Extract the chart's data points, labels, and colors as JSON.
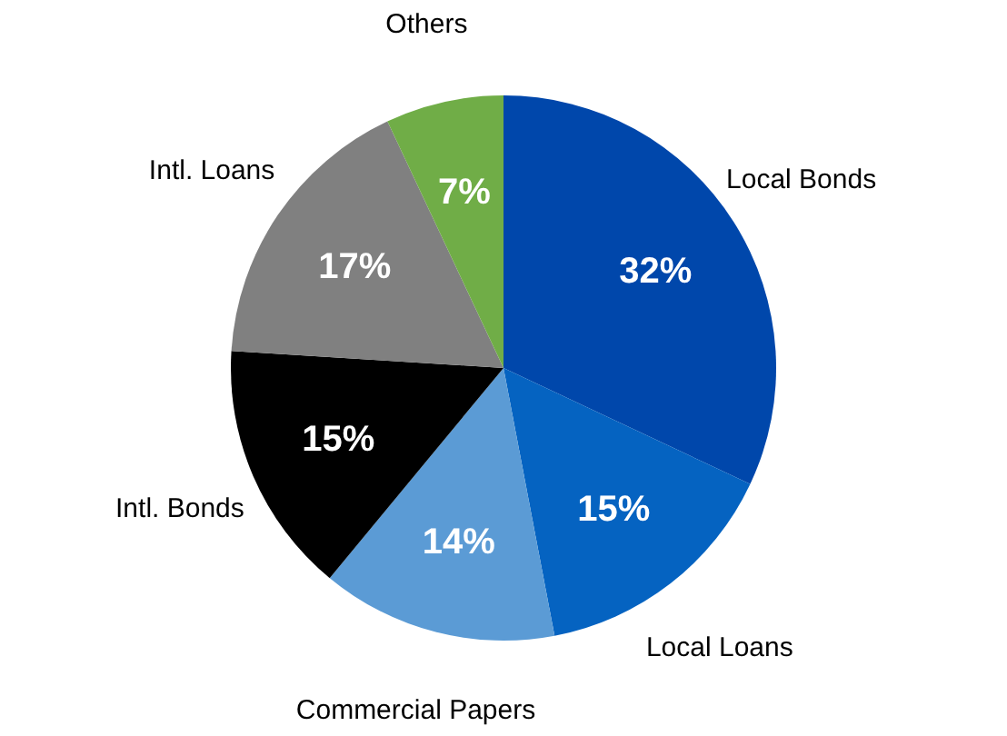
{
  "chart_data": {
    "type": "pie",
    "categories": [
      "Local Bonds",
      "Local Loans",
      "Commercial Papers",
      "Intl. Bonds",
      "Intl. Loans",
      "Others"
    ],
    "values": [
      32,
      15,
      14,
      15,
      17,
      7
    ],
    "value_labels": [
      "32%",
      "15%",
      "14%",
      "15%",
      "17%",
      "7%"
    ],
    "colors": [
      "#0047ab",
      "#0563c1",
      "#5b9bd5",
      "#000000",
      "#808080",
      "#70ad47"
    ]
  }
}
